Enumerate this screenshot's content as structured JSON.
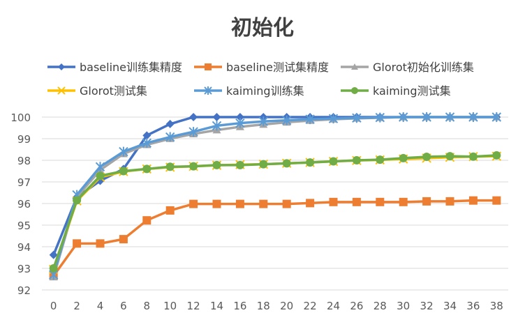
{
  "chart_data": {
    "type": "line",
    "title": "初始化",
    "xlabel": "",
    "ylabel": "",
    "ylim": [
      92,
      100
    ],
    "yticks": [
      92,
      93,
      94,
      95,
      96,
      97,
      98,
      99,
      100
    ],
    "x": [
      0,
      2,
      4,
      6,
      8,
      10,
      12,
      14,
      16,
      18,
      20,
      22,
      24,
      26,
      28,
      30,
      32,
      34,
      36,
      38
    ],
    "grid": true,
    "legend_position": "top",
    "series": [
      {
        "name": "baseline训练集精度",
        "color": "#4472c4",
        "marker": "diamond",
        "values": [
          93.62,
          96.3,
          97.05,
          97.6,
          99.15,
          99.68,
          100,
          100,
          100,
          100,
          100,
          100,
          100,
          100,
          100,
          100,
          100,
          100,
          100,
          100
        ]
      },
      {
        "name": "baseline测试集精度",
        "color": "#ed7d31",
        "marker": "square",
        "values": [
          92.65,
          94.15,
          94.15,
          94.35,
          95.22,
          95.68,
          95.98,
          95.98,
          95.98,
          95.98,
          95.98,
          96.02,
          96.07,
          96.07,
          96.07,
          96.07,
          96.1,
          96.1,
          96.14,
          96.14
        ]
      },
      {
        "name": "Glorot初始化训练集",
        "color": "#a5a5a5",
        "marker": "triangle",
        "values": [
          92.6,
          96.3,
          97.55,
          98.3,
          98.72,
          99.0,
          99.22,
          99.4,
          99.55,
          99.66,
          99.76,
          99.84,
          99.9,
          99.94,
          99.97,
          100,
          100,
          100,
          100,
          100
        ]
      },
      {
        "name": "Glorot测试集",
        "color": "#ffc000",
        "marker": "x",
        "values": [
          92.95,
          96.12,
          97.22,
          97.48,
          97.6,
          97.68,
          97.72,
          97.77,
          97.8,
          97.82,
          97.86,
          97.9,
          97.95,
          97.99,
          98.02,
          98.06,
          98.1,
          98.14,
          98.17,
          98.19
        ]
      },
      {
        "name": "kaiming训练集",
        "color": "#5b9bd5",
        "marker": "star",
        "values": [
          92.7,
          96.4,
          97.7,
          98.4,
          98.8,
          99.08,
          99.32,
          99.6,
          99.72,
          99.8,
          99.85,
          99.9,
          99.93,
          99.96,
          99.98,
          100,
          100,
          100,
          100,
          100
        ]
      },
      {
        "name": "kaiming测试集",
        "color": "#70ad47",
        "marker": "circle",
        "values": [
          93.0,
          96.15,
          97.28,
          97.5,
          97.6,
          97.7,
          97.72,
          97.78,
          97.78,
          97.82,
          97.86,
          97.9,
          97.95,
          98.0,
          98.03,
          98.1,
          98.16,
          98.19,
          98.17,
          98.23
        ]
      }
    ]
  }
}
